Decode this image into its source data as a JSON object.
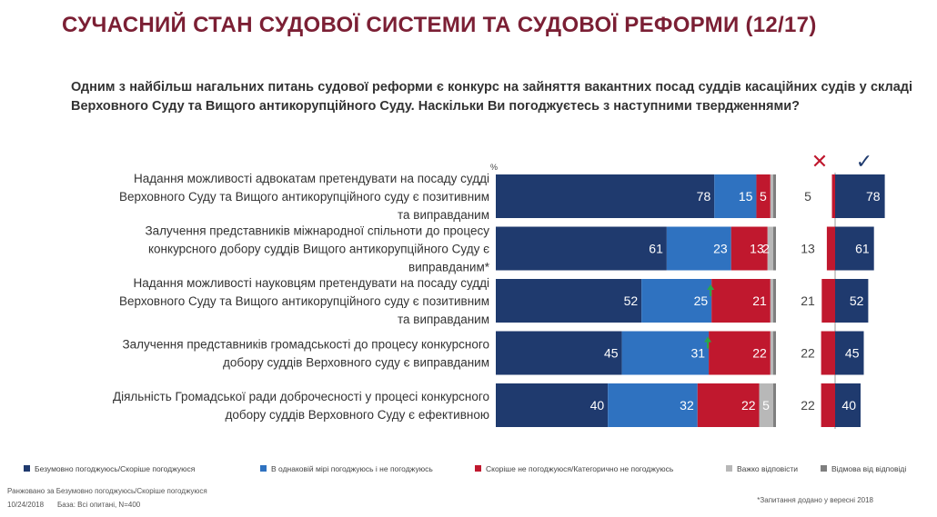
{
  "page": {
    "title": "СУЧАСНИЙ СТАН СУДОВОЇ СИСТЕМИ ТА СУДОВОЇ РЕФОРМИ (12/17)",
    "question": "Одним з найбільш нагальних питань судової реформи є конкурс на зайняття вакантних посад суддів касаційних судів у складі Верховного Суду та Вищого антикорупційного Суду. Наскільки Ви погоджуєтесь з наступними твердженнями?",
    "footnote_note": "Ранжовано за Безумовно погоджуюсь/Скоріше погоджуюся",
    "footnote_date": "10/24/2018",
    "footnote_base": "База: Всі опитані, N=400",
    "footnote_added": "*Запитання додано у вересні 2018"
  },
  "chart_data": {
    "type": "bar",
    "stacked": true,
    "orientation": "horizontal",
    "unit_label": "%",
    "xlim": [
      0,
      100
    ],
    "categories": [
      "Надання можливості адвокатам претендувати на посаду судді Верховного Суду та Вищого антикорупційного суду є позитивним та виправданим",
      "Залучення представників міжнародної спільноти до процесу конкурсного добору суддів Вищого антикорупційного Суду є виправданим*",
      "Надання можливості науковцям претендувати на посаду судді Верховного Суду та Вищого антикорупційного суду є позитивним та виправданим",
      "Залучення представників громадськості до процесу конкурсного добору суддів Верховного суду є виправданим",
      "Діяльність Громадської ради доброчесності у процесі конкурсного добору суддів Верховного Суду є ефективною"
    ],
    "category_lines": [
      [
        "Надання можливості адвокатам претендувати на посаду судді",
        "Верховного Суду та Вищого антикорупційного суду є позитивним",
        "та виправданим"
      ],
      [
        "Залучення представників міжнародної спільноти до процесу",
        "конкурсного добору суддів Вищого антикорупційного Суду є",
        "виправданим*"
      ],
      [
        "Надання можливості науковцям претендувати на посаду судді",
        "Верховного Суду та Вищого антикорупційного суду є позитивним",
        "та виправданим"
      ],
      [
        "Залучення представників громадськості до процесу конкурсного",
        "добору суддів Верховного суду є виправданим"
      ],
      [
        "Діяльність Громадської ради доброчесності у процесі конкурсного",
        "добору суддів Верховного Суду є ефективною"
      ]
    ],
    "series": [
      {
        "name": "Безумовно погоджуюсь/Скоріше погоджуюся",
        "color": "#1f3a6e",
        "values": [
          78,
          61,
          52,
          45,
          40
        ],
        "labels": [
          "78",
          "61",
          "52",
          "45",
          "40"
        ]
      },
      {
        "name": "В однаковій мірі погоджуюсь і не погоджуюсь",
        "color": "#2f72c0",
        "values": [
          15,
          23,
          25,
          31,
          32
        ],
        "labels": [
          "15",
          "23",
          "25",
          "31",
          "32"
        ]
      },
      {
        "name": "Скоріше не погоджуюся/Категорично не погоджуюсь",
        "color": "#c0182e",
        "values": [
          5,
          13,
          21,
          22,
          22
        ],
        "labels": [
          "5",
          "13",
          "21",
          "22",
          "22"
        ]
      },
      {
        "name": "Важко відповісти",
        "color": "#b8b8b8",
        "values": [
          1,
          2,
          1,
          1,
          5
        ],
        "labels": [
          "",
          "2",
          "",
          "",
          "5"
        ]
      },
      {
        "name": "Відмова від відповіді",
        "color": "#7f7f7f",
        "values": [
          1,
          1,
          1,
          1,
          1
        ],
        "labels": [
          "",
          "",
          "",
          "",
          ""
        ]
      }
    ],
    "up_arrows": [
      {
        "row": 2,
        "series": 1,
        "color": "#2aa84a"
      },
      {
        "row": 3,
        "series": 1,
        "color": "#2aa84a"
      }
    ],
    "summary": {
      "disagree": {
        "icon": "cross-icon",
        "symbol": "✕",
        "color": "#c0182e",
        "values": [
          5,
          13,
          21,
          22,
          22
        ]
      },
      "agree": {
        "icon": "check-icon",
        "symbol": "✓",
        "color": "#1f3a6e",
        "values": [
          78,
          61,
          52,
          45,
          40
        ]
      }
    },
    "legend_position": "bottom",
    "grid": false
  }
}
